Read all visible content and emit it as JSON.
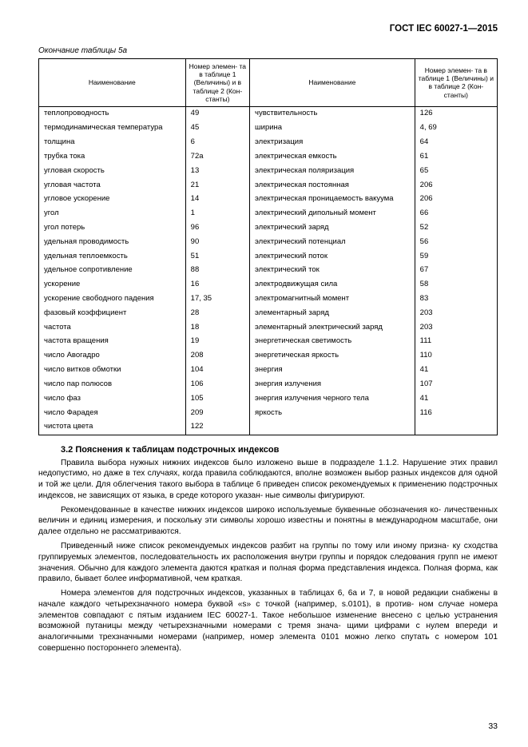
{
  "header": "ГОСТ IEC 60027-1—2015",
  "table_caption": "Окончание таблицы 5а",
  "columns": {
    "c1": "Наименование",
    "c2": "Номер элемен- та в таблице 1 (Величины) и в таблице 2 (Кон- станты)",
    "c3": "Наименование",
    "c4": "Номер элемен- та в таблице 1 (Величины) и в таблице 2 (Кон- станты)"
  },
  "rows": [
    {
      "a": "теплопроводность",
      "b": "49",
      "c": "чувствительность",
      "d": "126"
    },
    {
      "a": "термодинамическая температура",
      "b": "45",
      "c": "ширина",
      "d": "4, 69"
    },
    {
      "a": "толщина",
      "b": "6",
      "c": "электризация",
      "d": "64"
    },
    {
      "a": "трубка тока",
      "b": "72а",
      "c": "электрическая емкость",
      "d": "61"
    },
    {
      "a": "угловая скорость",
      "b": "13",
      "c": "электрическая поляризация",
      "d": "65"
    },
    {
      "a": "угловая частота",
      "b": "21",
      "c": "электрическая постоянная",
      "d": "206"
    },
    {
      "a": "угловое ускорение",
      "b": "14",
      "c": "электрическая проницаемость вакуума",
      "d": "206",
      "justify": true
    },
    {
      "a": "угол",
      "b": "1",
      "c": "электрический дипольный момент",
      "d": "66"
    },
    {
      "a": "угол потерь",
      "b": "96",
      "c": "электрический заряд",
      "d": "52"
    },
    {
      "a": "удельная проводимость",
      "b": "90",
      "c": "электрический потенциал",
      "d": "56"
    },
    {
      "a": "удельная теплоемкость",
      "b": "51",
      "c": "электрический поток",
      "d": "59"
    },
    {
      "a": "удельное сопротивление",
      "b": "88",
      "c": "электрический ток",
      "d": "67"
    },
    {
      "a": "ускорение",
      "b": "16",
      "c": "электродвижущая сила",
      "d": "58"
    },
    {
      "a": "ускорение свободного падения",
      "b": "17, 35",
      "c": "электромагнитный момент",
      "d": "83"
    },
    {
      "a": "фазовый коэффициент",
      "b": "28",
      "c": "элементарный заряд",
      "d": "203"
    },
    {
      "a": "частота",
      "b": "18",
      "c": "элементарный электрический заряд",
      "d": "203",
      "justify": true
    },
    {
      "a": "частота вращения",
      "b": "19",
      "c": "энергетическая светимость",
      "d": "111"
    },
    {
      "a": "число Авогадро",
      "b": "208",
      "c": "энергетическая яркость",
      "d": "110"
    },
    {
      "a": "число витков обмотки",
      "b": "104",
      "c": "энергия",
      "d": "41"
    },
    {
      "a": "число пар полюсов",
      "b": "106",
      "c": "энергия излучения",
      "d": "107"
    },
    {
      "a": "число фаз",
      "b": "105",
      "c": "энергия излучения черного тела",
      "d": "41"
    },
    {
      "a": "число Фарадея",
      "b": "209",
      "c": "яркость",
      "d": "116"
    },
    {
      "a": "чистота цвета",
      "b": "122",
      "c": "",
      "d": ""
    }
  ],
  "section_heading": "3.2 Пояснения к таблицам подстрочных индексов",
  "paragraphs": [
    "Правила выбора нужных нижних индексов было изложено выше в подразделе 1.1.2. Нарушение этих правил недопустимо, но даже в тех случаях, когда правила соблюдаются, вполне возможен выбор разных индексов для одной и той же цели. Для облегчения такого выбора в таблице 6 приведен список рекомендуемых к применению подстрочных индексов, не зависящих от языка, в среде которого указан- ные символы фигурируют.",
    "Рекомендованные в качестве нижних индексов широко используемые буквенные обозначения ко- личественных величин и единиц измерения, и поскольку эти символы хорошо известны и понятны в международном масштабе, они далее отдельно не рассматриваются.",
    "Приведенный ниже список рекомендуемых индексов разбит на группы по тому или иному призна- ку сходства группируемых элементов, последовательность их расположения внутри группы и порядок следования групп не имеют значения. Обычно для каждого элемента даются краткая и полная форма представления индекса. Полная форма, как правило, бывает более информативной, чем краткая.",
    "Номера элементов для подстрочных индексов, указанных в таблицах 6, 6а и 7, в новой редакции снабжены в начале каждого четырехзначного номера буквой «s» с точкой (например, s.0101), в против- ном случае номера элементов совпадают с пятым изданием IEC 60027-1. Такое небольшое изменение внесено с целью устранения возможной путаницы между четырехзначными номерами с тремя знача- щими цифрами с нулем впереди и аналогичными трехзначными номерами (например, номер элемента 0101 можно легко спутать с номером 101 совершенно постороннего элемента)."
  ],
  "page_number": "33"
}
